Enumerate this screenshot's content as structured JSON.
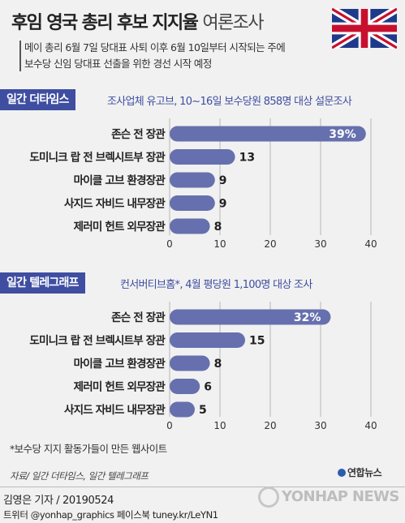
{
  "header": {
    "title_bold": "후임 영국 총리 후보 지지율",
    "title_light": "여론조사",
    "flag_icon": "uk-flag-icon",
    "lead_line1": "메이 총리 6월 7일 당대표 사퇴 이후 6월 10일부터 시작되는 주에",
    "lead_line2": "보수당 신임 당대표 선출을 위한 경선 시작 예정"
  },
  "sections": [
    {
      "label": "일간 더타임스",
      "note": "조사업체 유고브, 10~16일 보수당원 858명 대상 설문조사"
    },
    {
      "label": "일간 텔레그래프",
      "note": "컨서버티브홈*, 4월 평당원 1,100명 대상 조사"
    }
  ],
  "chart_data": [
    {
      "type": "bar",
      "orientation": "horizontal",
      "categories": [
        "존슨 전 장관",
        "도미니크 랍 전 브렉시트부 장관",
        "마이클 고브 환경장관",
        "사지드 자비드 내무장관",
        "제러미 헌트 외무장관"
      ],
      "values": [
        39,
        13,
        9,
        9,
        8
      ],
      "value_labels": [
        "39%",
        "13",
        "9",
        "9",
        "8"
      ],
      "xlim": [
        0,
        40
      ],
      "ticks": [
        0,
        10,
        20,
        30,
        40
      ],
      "grid": true,
      "bar_color": "#6670ae"
    },
    {
      "type": "bar",
      "orientation": "horizontal",
      "categories": [
        "존슨 전 장관",
        "도미니크 랍 전 브렉시트부 장관",
        "마이클 고브 환경장관",
        "제러미 헌트 외무장관",
        "사지드 자비드 내무장관"
      ],
      "values": [
        32,
        15,
        8,
        6,
        5
      ],
      "value_labels": [
        "32%",
        "15",
        "8",
        "6",
        "5"
      ],
      "xlim": [
        0,
        40
      ],
      "ticks": [
        0,
        10,
        20,
        30,
        40
      ],
      "grid": true,
      "bar_color": "#6670ae"
    }
  ],
  "footer": {
    "footnote": "*보수당 지지 활동가들이 만든 웹사이트",
    "source": "자료/ 일간 더타임스, 일간 텔레그래프",
    "logo_small": "연합뉴스",
    "credit": "김영은 기자 / 20190524",
    "social": "트위터 @yonhap_graphics  페이스북 tuney.kr/LeYN1",
    "watermark": "YONHAP NEWS"
  }
}
